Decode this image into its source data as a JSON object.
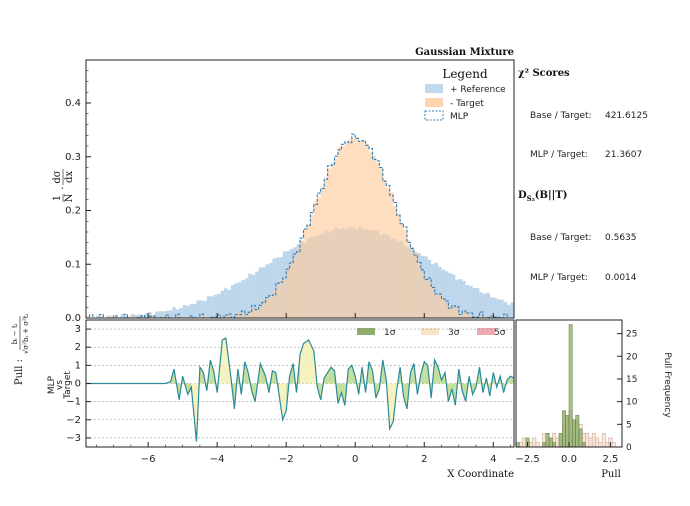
{
  "chart_data": [
    {
      "id": "main",
      "type": "histogram",
      "title": "Gaussian Mixture",
      "ylabel": "1/N · dσ/dx",
      "xlim": [
        -7.8,
        4.6
      ],
      "ylim": [
        0,
        0.48
      ],
      "yticks": [
        0.0,
        0.1,
        0.2,
        0.3,
        0.4
      ],
      "ytick_labels": [
        "0.0",
        "0.1",
        "0.2",
        "0.3",
        "0.4"
      ],
      "legend": {
        "title": "Legend",
        "position": "top-right",
        "entries": [
          {
            "label": "+ Reference",
            "color": "#a7c8e5"
          },
          {
            "label": "- Target",
            "color": "#ffcb9c"
          },
          {
            "label": "MLP",
            "color": "#2e7fb5"
          }
        ]
      },
      "series": [
        {
          "name": "Reference",
          "model": "gaussian",
          "mu": -0.1,
          "sigma": 2.4,
          "peak": 0.168,
          "xmin": -7.8,
          "xmax": 4.6
        },
        {
          "name": "Target",
          "model": "gaussian",
          "mu": 0.0,
          "sigma": 1.2,
          "peak": 0.335,
          "xmin": -5.5,
          "xmax": 4.6
        },
        {
          "name": "MLP",
          "model": "gaussian",
          "mu": 0.0,
          "sigma": 1.2,
          "peak": 0.335,
          "xmin": -5.5,
          "xmax": 4.6
        }
      ],
      "bin_width": 0.1
    },
    {
      "id": "ratio",
      "type": "area",
      "ylabel": "MLP vs Target",
      "xlabel": "X Coordinate",
      "xlim": [
        -7.8,
        4.6
      ],
      "ylim": [
        -3.5,
        3.5
      ],
      "xticks": [
        -6,
        -4,
        -2,
        0,
        2,
        4
      ],
      "xtick_labels": [
        "−6",
        "−4",
        "−2",
        "0",
        "2",
        "4"
      ],
      "yticks": [
        -3,
        -2,
        -1,
        0,
        1,
        2,
        3
      ],
      "ytick_labels": [
        "−3",
        "−2",
        "−1",
        "0",
        "1",
        "2",
        "3"
      ],
      "legend": [
        {
          "label": "1σ",
          "color": "#8fae6b"
        },
        {
          "label": "3σ",
          "color": "#fae3c4"
        },
        {
          "label": "5σ",
          "color": "#eeaab1"
        }
      ],
      "x": [
        -7.8,
        -5.5,
        -5.35,
        -5.25,
        -5.1,
        -5.0,
        -4.85,
        -4.75,
        -4.6,
        -4.5,
        -4.4,
        -4.3,
        -4.2,
        -4.1,
        -4.0,
        -3.85,
        -3.75,
        -3.6,
        -3.5,
        -3.4,
        -3.3,
        -3.2,
        -3.1,
        -3.0,
        -2.9,
        -2.75,
        -2.6,
        -2.5,
        -2.4,
        -2.3,
        -2.2,
        -2.1,
        -2.0,
        -1.9,
        -1.8,
        -1.7,
        -1.6,
        -1.5,
        -1.35,
        -1.2,
        -1.1,
        -1.0,
        -0.9,
        -0.8,
        -0.7,
        -0.6,
        -0.5,
        -0.4,
        -0.3,
        -0.2,
        -0.1,
        0.0,
        0.1,
        0.2,
        0.3,
        0.4,
        0.5,
        0.6,
        0.7,
        0.8,
        0.9,
        1.0,
        1.1,
        1.2,
        1.3,
        1.4,
        1.5,
        1.6,
        1.7,
        1.8,
        1.9,
        2.0,
        2.1,
        2.2,
        2.3,
        2.4,
        2.5,
        2.6,
        2.7,
        2.8,
        2.9,
        3.0,
        3.1,
        3.2,
        3.3,
        3.4,
        3.5,
        3.6,
        3.7,
        3.8,
        3.9,
        4.0,
        4.1,
        4.2,
        4.3,
        4.4,
        4.5,
        4.6
      ],
      "values": [
        0,
        0,
        0.1,
        0.8,
        -0.9,
        0.4,
        -0.6,
        -0.2,
        -3.2,
        0.9,
        0.6,
        -0.4,
        1.3,
        0.7,
        -0.5,
        2.4,
        2.5,
        0.3,
        -1.4,
        0.8,
        -0.6,
        1.2,
        0.6,
        -0.4,
        -1.0,
        1.1,
        0.4,
        -0.5,
        0.7,
        0.6,
        -0.7,
        -2.0,
        -1.5,
        0.4,
        1.1,
        -0.5,
        1.6,
        2.2,
        2.4,
        1.8,
        -0.2,
        -0.9,
        0.3,
        0.6,
        0.9,
        0.7,
        -1.1,
        -0.5,
        -1.2,
        0.8,
        1.0,
        0.4,
        -0.6,
        0.9,
        -0.5,
        1.2,
        0.7,
        -0.8,
        -0.3,
        1.3,
        0.2,
        -2.5,
        -2.1,
        -0.4,
        0.9,
        -0.7,
        -1.4,
        0.6,
        1.1,
        -0.6,
        0.5,
        1.2,
        1.0,
        -0.8,
        1.3,
        0.9,
        0.2,
        0.6,
        -1.0,
        -0.3,
        -1.2,
        0.8,
        -0.4,
        -1.0,
        0.4,
        -0.6,
        -0.2,
        0.9,
        -0.5,
        0.3,
        -0.7,
        0.6,
        -0.2,
        0.4,
        -0.5,
        0.2,
        0.4,
        0.3
      ]
    },
    {
      "id": "pull",
      "type": "bar",
      "xlabel": "Pull",
      "ylabel": "Pull Frequency",
      "xlim": [
        -3.2,
        3.2
      ],
      "ylim": [
        0,
        28
      ],
      "xticks": [
        -2.5,
        0.0,
        2.5
      ],
      "xtick_labels": [
        "−2.5",
        "0.0",
        "2.5"
      ],
      "yticks": [
        0,
        5,
        10,
        15,
        20,
        25
      ],
      "ytick_labels": [
        "0",
        "5",
        "10",
        "15",
        "20",
        "25"
      ],
      "bin_edges": [
        -3.2,
        -3.0,
        -2.8,
        -2.6,
        -2.4,
        -2.2,
        -2.0,
        -1.8,
        -1.6,
        -1.4,
        -1.2,
        -1.0,
        -0.8,
        -0.6,
        -0.4,
        -0.2,
        0.0,
        0.2,
        0.4,
        0.6,
        0.8,
        1.0,
        1.2,
        1.4,
        1.6,
        1.8,
        2.0,
        2.2,
        2.4,
        2.6,
        2.8,
        3.0,
        3.2
      ],
      "mlp_counts": [
        1,
        0,
        0,
        2,
        0,
        0,
        0,
        0,
        1,
        3,
        2,
        1,
        0,
        3,
        8,
        7,
        27,
        6,
        7,
        4,
        1,
        0,
        0,
        0,
        0,
        0,
        0,
        0,
        0,
        0,
        0,
        0
      ],
      "ref_counts": [
        0,
        1,
        2,
        1,
        1,
        2,
        1,
        0,
        3,
        3,
        2,
        3,
        2,
        3,
        5,
        6,
        8,
        4,
        6,
        5,
        3,
        3,
        2,
        3,
        2,
        1,
        3,
        1,
        2,
        1,
        0,
        0
      ]
    }
  ],
  "chi2_panel": {
    "heading": "χ² Scores",
    "rows": [
      {
        "label": "Base / Target:",
        "value": "421.6125"
      },
      {
        "label": "MLP / Target:",
        "value": "21.3607"
      }
    ]
  },
  "ds_panel": {
    "heading": "D",
    "heading_sub": "S₂",
    "heading_tail": "(B||T)",
    "rows": [
      {
        "label": "Base / Target:",
        "value": "0.5635"
      },
      {
        "label": "MLP / Target:",
        "value": "0.0014"
      }
    ]
  },
  "pull_axis_label": {
    "prefix": "Pull : ",
    "numerator": "bᵢ − tᵢ",
    "denominator": "√σ²bᵢ + σ²tᵢ"
  },
  "colors": {
    "reference": "#a7c8e5",
    "target": "#ffcb9c",
    "overlap": "#d4bba5",
    "mlp_line": "#2e7fb5",
    "ratio_line": "#2b8a99",
    "band_green": "#b9d98a",
    "band_yellow": "#f4f0b4",
    "pull_ref_edge": "#c9a894",
    "pull_mlp": "#8fae6b"
  }
}
